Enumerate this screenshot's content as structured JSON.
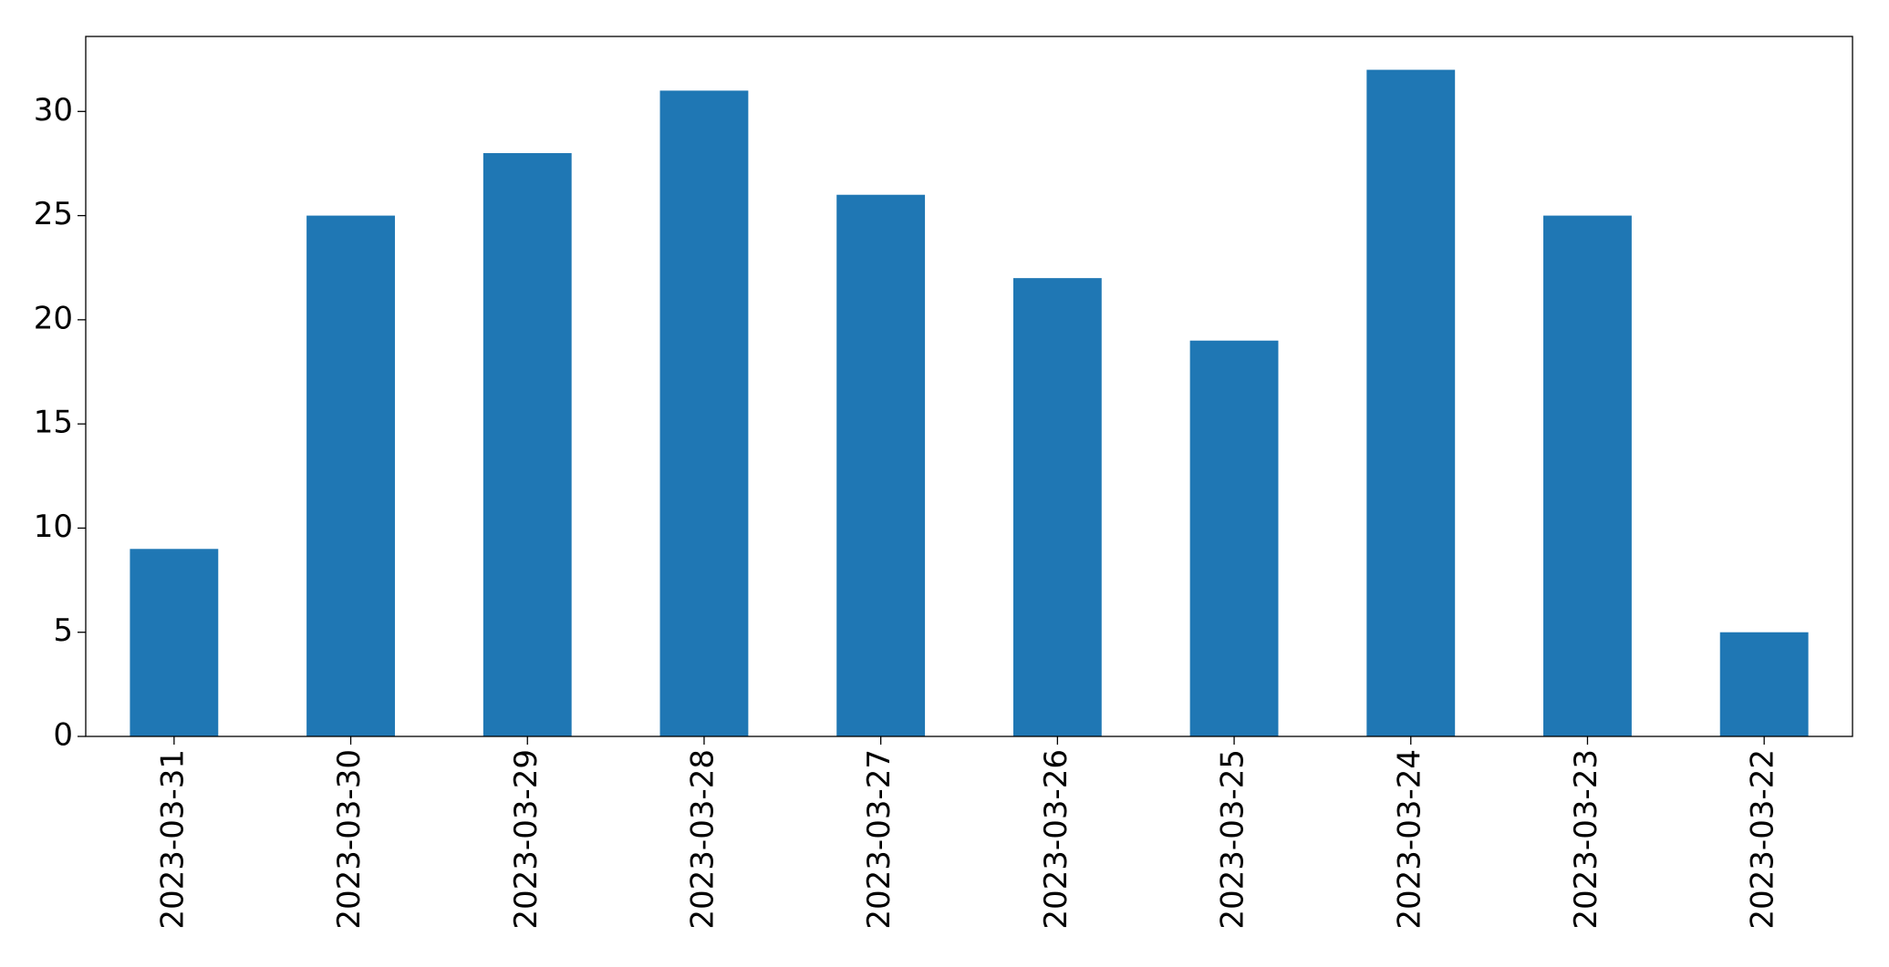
{
  "chart_data": {
    "type": "bar",
    "categories": [
      "2023-03-31",
      "2023-03-30",
      "2023-03-29",
      "2023-03-28",
      "2023-03-27",
      "2023-03-26",
      "2023-03-25",
      "2023-03-24",
      "2023-03-23",
      "2023-03-22"
    ],
    "values": [
      9,
      25,
      28,
      31,
      26,
      22,
      19,
      32,
      25,
      5
    ],
    "color": "#1f77b4",
    "ylim": [
      0,
      33.6
    ],
    "yticks": [
      0,
      5,
      10,
      15,
      20,
      25,
      30
    ],
    "grid": false
  }
}
